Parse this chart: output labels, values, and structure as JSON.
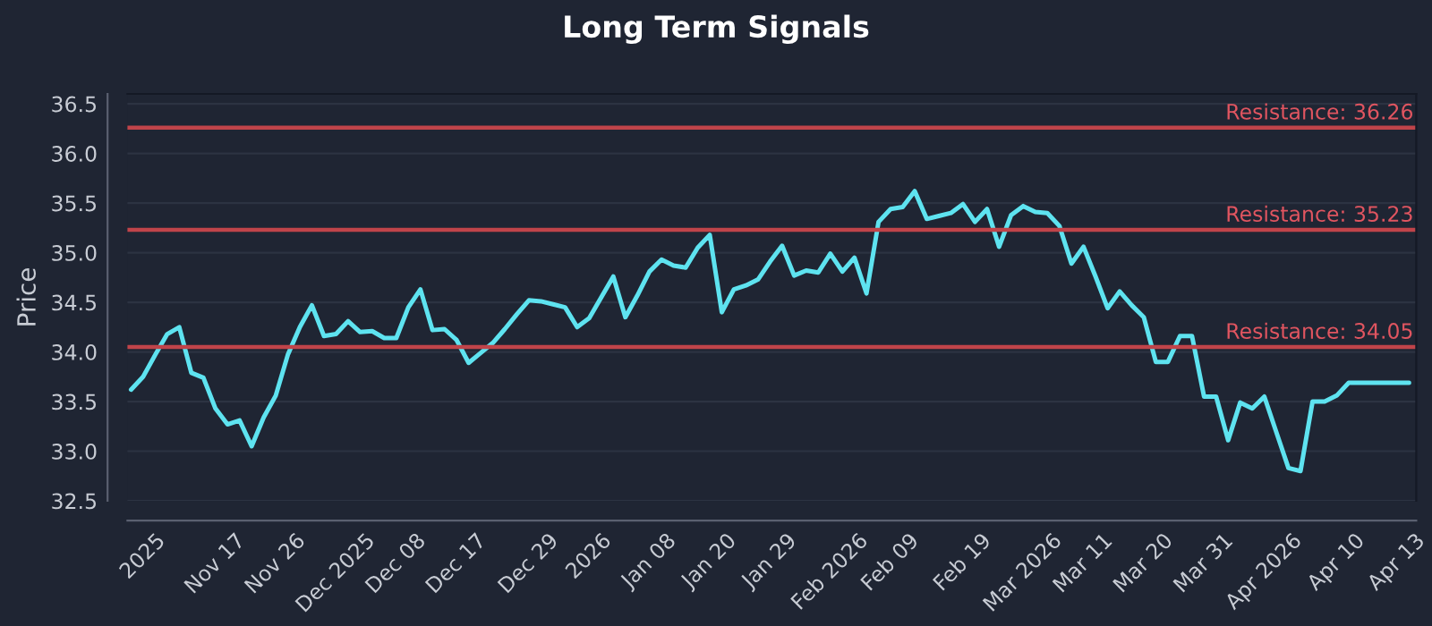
{
  "chart_data": {
    "type": "line",
    "title": "Long Term Signals",
    "ylabel": "Price",
    "categories": [
      null,
      "2025",
      null,
      null,
      null,
      null,
      null,
      "Nov 17",
      null,
      null,
      null,
      null,
      "Nov 26",
      null,
      null,
      null,
      null,
      "Dec 2025",
      null,
      null,
      null,
      null,
      "Dec 08",
      null,
      null,
      null,
      null,
      "Dec 17",
      null,
      null,
      null,
      null,
      null,
      "Dec 29",
      null,
      null,
      null,
      null,
      "2026",
      null,
      null,
      null,
      null,
      "Jan 08",
      null,
      null,
      null,
      null,
      "Jan 20",
      null,
      null,
      null,
      null,
      "Jan 29",
      null,
      null,
      null,
      null,
      "Feb 2026",
      null,
      null,
      null,
      null,
      "Feb 09",
      null,
      null,
      null,
      null,
      null,
      "Feb 19",
      null,
      null,
      null,
      null,
      "Mar 2026",
      null,
      null,
      null,
      null,
      "Mar 11",
      null,
      null,
      null,
      null,
      "Mar 20",
      null,
      null,
      null,
      null,
      "Mar 31",
      null,
      null,
      null,
      null,
      "Apr 2026",
      null,
      null,
      null,
      null,
      null,
      "Apr 10",
      null,
      null,
      null,
      null,
      "Apr 13",
      null
    ],
    "series": [
      {
        "color": "#5ee3f0",
        "values": [
          33.62,
          33.75,
          33.97,
          34.18,
          34.25,
          33.79,
          33.74,
          33.43,
          33.27,
          33.31,
          33.05,
          33.34,
          33.56,
          33.97,
          34.25,
          34.47,
          34.16,
          34.18,
          34.31,
          34.2,
          34.21,
          34.14,
          34.14,
          34.45,
          34.63,
          34.22,
          34.23,
          34.12,
          33.89,
          33.99,
          34.09,
          34.23,
          34.38,
          34.52,
          34.51,
          34.48,
          34.45,
          34.25,
          34.34,
          34.55,
          34.76,
          34.35,
          34.57,
          34.81,
          34.93,
          34.87,
          34.85,
          35.05,
          35.18,
          34.4,
          34.63,
          34.67,
          34.73,
          34.91,
          35.07,
          34.77,
          34.82,
          34.8,
          34.99,
          34.81,
          34.95,
          34.59,
          35.31,
          35.44,
          35.46,
          35.62,
          35.34,
          35.37,
          35.4,
          35.49,
          35.31,
          35.44,
          35.06,
          35.38,
          35.47,
          35.41,
          35.4,
          35.27,
          34.89,
          35.06,
          34.76,
          34.44,
          34.61,
          34.47,
          34.35,
          33.9,
          33.9,
          34.16,
          34.16,
          33.55,
          33.55,
          33.11,
          33.49,
          33.43,
          33.55,
          33.19,
          32.83,
          32.8,
          33.5,
          33.5,
          33.56,
          33.69,
          33.69,
          33.69,
          33.69,
          33.69,
          33.69
        ]
      }
    ],
    "ylim": [
      32.5,
      36.6
    ],
    "yticks": [
      32.5,
      {
        "value": 33,
        "label": "33.0"
      },
      33.5,
      {
        "value": 34,
        "label": "34.0"
      },
      34.5,
      {
        "value": 35,
        "label": "35.0"
      },
      35.5,
      {
        "value": 36,
        "label": "36.0"
      },
      36.5
    ],
    "ref_lines": [
      {
        "axis": "y",
        "value": 36.26,
        "label": "Resistance: 36.26",
        "color": "#c0444a"
      },
      {
        "axis": "y",
        "value": 35.23,
        "label": "Resistance: 35.23",
        "color": "#c0444a"
      },
      {
        "axis": "y",
        "value": 34.05,
        "label": "Resistance: 34.05",
        "color": "#c0444a"
      }
    ],
    "grid": "y",
    "legend": false,
    "marker": "none",
    "line_style": "solid"
  }
}
